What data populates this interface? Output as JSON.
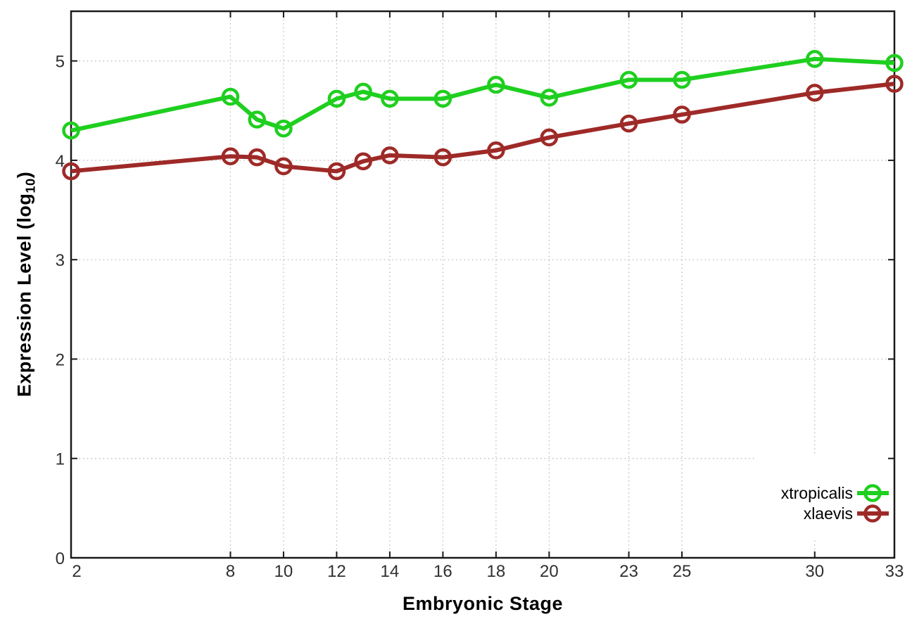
{
  "figure": {
    "background": "#ffffff",
    "axis_color": "#1a1a1a",
    "grid_color": "#b3b3b3",
    "tick_label_color": "#303030",
    "legend_text_color": "#000000"
  },
  "chart_data": {
    "type": "line",
    "title": "",
    "xlabel": "Embryonic Stage",
    "ylabel": "Expression Level (log₁₀)",
    "ylabel_parts": {
      "prefix": "Expression Level (log",
      "sub": "10",
      "suffix": ")"
    },
    "x": [
      2,
      8,
      9,
      10,
      12,
      13,
      14,
      16,
      18,
      20,
      23,
      25,
      30,
      33
    ],
    "xtick_labels": [
      "2",
      "8",
      "10",
      "12",
      "14",
      "16",
      "18",
      "20",
      "23",
      "25",
      "30",
      "33"
    ],
    "ytick_labels": [
      "0",
      "1",
      "2",
      "3",
      "4",
      "5"
    ],
    "xlim": [
      2,
      33
    ],
    "ylim": [
      0,
      5.5
    ],
    "grid": true,
    "grid_style": "dotted",
    "legend_position": "bottom-right",
    "legend_opaque": true,
    "marker": "open-circle",
    "series": [
      {
        "name": "xtropicalis",
        "color": "#1fcf1f",
        "values": [
          4.3,
          4.64,
          4.41,
          4.32,
          4.62,
          4.69,
          4.62,
          4.62,
          4.76,
          4.63,
          4.81,
          4.81,
          5.02,
          4.98
        ]
      },
      {
        "name": "xlaevis",
        "color": "#9e2a28",
        "values": [
          3.89,
          4.04,
          4.03,
          3.94,
          3.89,
          3.99,
          4.05,
          4.03,
          4.1,
          4.23,
          4.37,
          4.46,
          4.68,
          4.77
        ]
      }
    ]
  }
}
